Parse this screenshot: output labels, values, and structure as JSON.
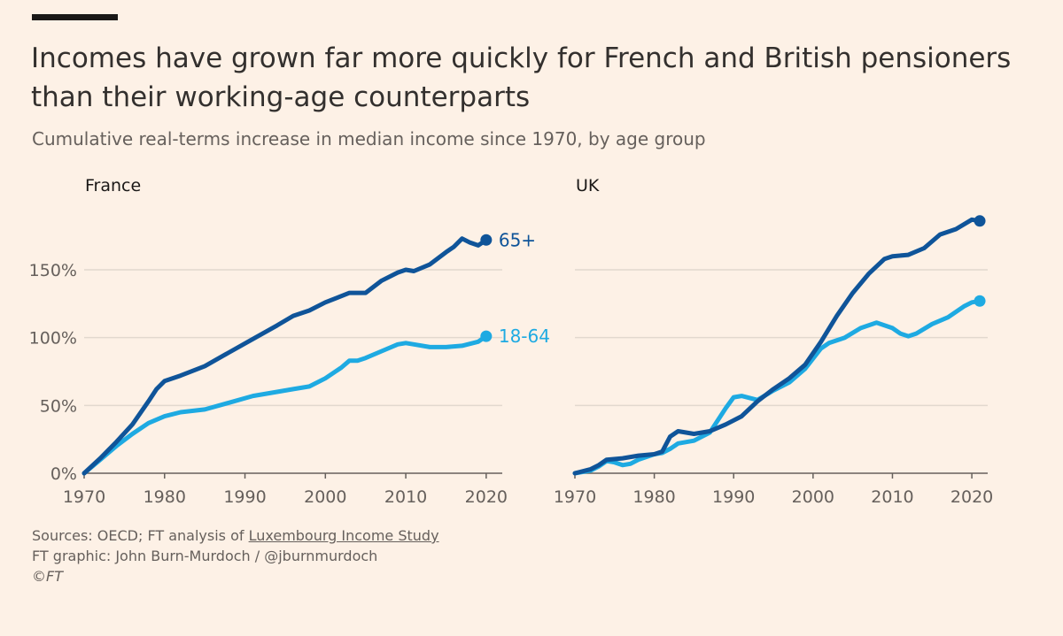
{
  "title": "Incomes have grown far more quickly for French and British pensioners than their working-age counterparts",
  "subtitle": "Cumulative real-terms increase in median income since 1970, by age group",
  "colors": {
    "dark": "#0f5499",
    "light": "#1eaae2",
    "grid": "#e2d8ce",
    "axis": "#66605c"
  },
  "chart_data": [
    {
      "type": "line",
      "title": "France",
      "xlim": [
        1970,
        2022
      ],
      "ylim": [
        0,
        180
      ],
      "xticks": [
        "1970",
        "1980",
        "1990",
        "2000",
        "2010",
        "2020"
      ],
      "yticks": [
        "0%",
        "50%",
        "100%",
        "150%"
      ],
      "grid": true,
      "series": [
        {
          "name": "65+",
          "label": "65+",
          "color": "#0f5499",
          "x": [
            1970,
            1972,
            1974,
            1976,
            1978,
            1979,
            1980,
            1982,
            1985,
            1988,
            1991,
            1994,
            1996,
            1998,
            2000,
            2003,
            2004,
            2005,
            2007,
            2009,
            2010,
            2011,
            2013,
            2015,
            2016,
            2017,
            2018,
            2019,
            2020
          ],
          "y": [
            0,
            11,
            23,
            36,
            53,
            62,
            68,
            72,
            79,
            89,
            99,
            109,
            116,
            120,
            126,
            133,
            133,
            133,
            142,
            148,
            150,
            149,
            154,
            163,
            167,
            173,
            170,
            168,
            172
          ]
        },
        {
          "name": "18-64",
          "label": "18-64",
          "color": "#1eaae2",
          "x": [
            1970,
            1972,
            1974,
            1976,
            1978,
            1980,
            1982,
            1985,
            1988,
            1991,
            1994,
            1996,
            1998,
            2000,
            2002,
            2003,
            2004,
            2005,
            2007,
            2009,
            2010,
            2011,
            2013,
            2015,
            2017,
            2019,
            2020
          ],
          "y": [
            0,
            10,
            20,
            29,
            37,
            42,
            45,
            47,
            52,
            57,
            60,
            62,
            64,
            70,
            78,
            83,
            83,
            85,
            90,
            95,
            96,
            95,
            93,
            93,
            94,
            97,
            101
          ]
        }
      ]
    },
    {
      "type": "line",
      "title": "UK",
      "xlim": [
        1970,
        2022
      ],
      "ylim": [
        0,
        180
      ],
      "xticks": [
        "1970",
        "1980",
        "1990",
        "2000",
        "2010",
        "2020"
      ],
      "yticks": [
        "0%",
        "50%",
        "100%",
        "150%"
      ],
      "grid": true,
      "series": [
        {
          "name": "65+",
          "color": "#0f5499",
          "x": [
            1970,
            1972,
            1973,
            1974,
            1976,
            1978,
            1980,
            1981,
            1982,
            1983,
            1984,
            1985,
            1987,
            1989,
            1991,
            1993,
            1995,
            1997,
            1999,
            2001,
            2003,
            2005,
            2007,
            2009,
            2010,
            2012,
            2014,
            2016,
            2018,
            2020,
            2021
          ],
          "y": [
            0,
            3,
            6,
            10,
            11,
            13,
            14,
            16,
            27,
            31,
            30,
            29,
            31,
            36,
            42,
            53,
            62,
            70,
            80,
            97,
            116,
            133,
            147,
            158,
            160,
            161,
            166,
            176,
            180,
            187,
            186
          ]
        },
        {
          "name": "18-64",
          "color": "#1eaae2",
          "x": [
            1970,
            1972,
            1973,
            1974,
            1975,
            1976,
            1977,
            1978,
            1980,
            1981,
            1982,
            1983,
            1985,
            1987,
            1989,
            1990,
            1991,
            1993,
            1995,
            1997,
            1999,
            2001,
            2002,
            2004,
            2006,
            2008,
            2010,
            2011,
            2012,
            2013,
            2015,
            2017,
            2019,
            2020,
            2021
          ],
          "y": [
            0,
            2,
            5,
            9,
            8,
            6,
            7,
            10,
            14,
            15,
            18,
            22,
            24,
            30,
            48,
            56,
            57,
            54,
            61,
            67,
            77,
            92,
            96,
            100,
            107,
            111,
            107,
            103,
            101,
            103,
            110,
            115,
            123,
            126,
            127
          ]
        }
      ]
    }
  ],
  "footer": {
    "sources_prefix": "Sources: OECD; FT analysis of ",
    "sources_link": "Luxembourg Income Study",
    "credit": "FT graphic: John Burn-Murdoch / @jburnmurdoch",
    "copyright": "©FT"
  }
}
